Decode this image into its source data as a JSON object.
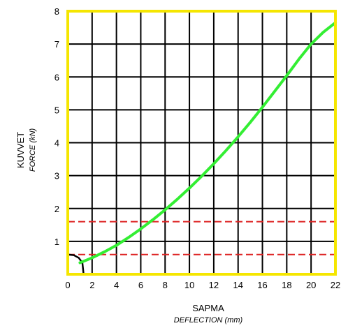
{
  "chart_data": {
    "type": "line",
    "xlabel": "SAPMA",
    "xlabel_sub": "DEFLECTION (mm)",
    "ylabel": "KUVVET",
    "ylabel_sub": "FORCE (kN)",
    "xlim": [
      0,
      22
    ],
    "ylim": [
      0,
      8
    ],
    "x_ticks": [
      0,
      2,
      4,
      6,
      8,
      10,
      12,
      14,
      16,
      18,
      20,
      22
    ],
    "y_ticks": [
      1,
      2,
      3,
      4,
      5,
      6,
      7,
      8
    ],
    "x_tick_labels": [
      "0",
      "2",
      "4",
      "6",
      "8",
      "10",
      "12",
      "14",
      "16",
      "18",
      "20",
      "22"
    ],
    "y_tick_labels": [
      "1",
      "2",
      "3",
      "4",
      "5",
      "6",
      "7",
      "8"
    ],
    "grid": true,
    "series": [
      {
        "color": "#33ee33",
        "x": [
          1.0,
          2.0,
          3.0,
          4.0,
          5.0,
          6.0,
          7.0,
          8.0,
          9.0,
          10.0,
          11.0,
          12.0,
          13.0,
          14.0,
          15.0,
          16.0,
          17.0,
          18.0,
          19.0,
          20.0,
          21.0,
          22.0
        ],
        "y": [
          0.35,
          0.5,
          0.68,
          0.88,
          1.12,
          1.38,
          1.66,
          1.96,
          2.28,
          2.62,
          2.98,
          3.36,
          3.76,
          4.18,
          4.62,
          5.08,
          5.56,
          6.04,
          6.54,
          7.0,
          7.36,
          7.65
        ]
      }
    ],
    "reference_lines": [
      {
        "y": 1.6,
        "color": "#dd2222",
        "style": "dashed"
      },
      {
        "y": 0.6,
        "color": "#dd2222",
        "style": "dashed"
      }
    ],
    "initial_curve": {
      "color": "#000000",
      "x": [
        0.0,
        0.5,
        0.9,
        1.2,
        1.3
      ],
      "y": [
        0.6,
        0.58,
        0.5,
        0.35,
        0.0
      ]
    },
    "frame_color": "#f5e600",
    "grid_color": "#000000"
  }
}
